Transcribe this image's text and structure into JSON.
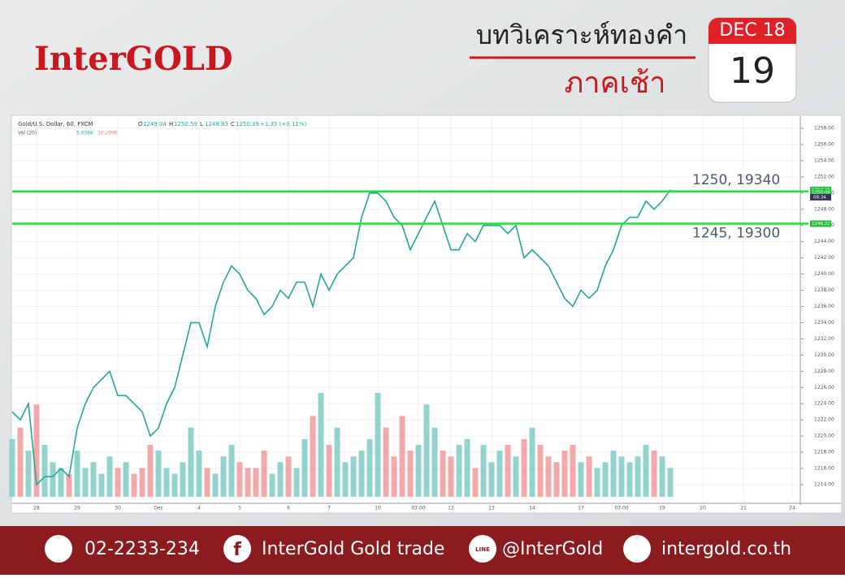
{
  "header": {
    "logo": "InterGOLD",
    "title": "บทวิเคราะห์ทองคำ",
    "subtitle": "ภาคเช้า",
    "calendar_month": "DEC 18",
    "calendar_day": "19"
  },
  "chart_data": {
    "type": "line",
    "legend_title": "Gold/U.S. Dollar, 60, FXCM",
    "ohlc_labels": [
      "O",
      "H",
      "L",
      "C"
    ],
    "ohlc": [
      1249.04,
      1250.59,
      1248.93,
      1250.39
    ],
    "change": "+1.35 (+0.11%)",
    "volume_readouts": [
      "5.036K",
      "10.209K"
    ],
    "categories": [
      null,
      null,
      null,
      "28",
      null,
      null,
      null,
      null,
      "29",
      null,
      null,
      null,
      null,
      "30",
      null,
      null,
      null,
      null,
      "Dec",
      null,
      null,
      null,
      null,
      "4",
      null,
      null,
      null,
      null,
      "5",
      null,
      null,
      null,
      null,
      null,
      "6",
      null,
      null,
      null,
      null,
      "7",
      null,
      null,
      null,
      null,
      null,
      "10",
      null,
      null,
      null,
      null,
      "03:00",
      null,
      null,
      null,
      "12",
      null,
      null,
      null,
      null,
      "13",
      null,
      null,
      null,
      null,
      "14",
      null,
      null,
      null,
      null,
      null,
      "17",
      null,
      null,
      null,
      null,
      "03:00",
      null,
      null,
      null,
      null,
      "19",
      null,
      null,
      null,
      null,
      "20",
      null,
      null,
      null,
      null,
      "21",
      null,
      null,
      null,
      null,
      null,
      "24",
      null
    ],
    "series": [
      {
        "name": "Gold/U.S. Dollar",
        "color": "#26a69a",
        "values": [
          1223,
          1222,
          1224,
          1214,
          1215,
          1215,
          1216,
          1215,
          1221,
          1224,
          1226,
          1227,
          1228,
          1225,
          1225,
          1224,
          1223,
          1220,
          1221,
          1224,
          1226,
          1230,
          1234,
          1234,
          1231,
          1236,
          1239,
          1241,
          1240,
          1238,
          1237,
          1235,
          1236,
          1238,
          1237,
          1239,
          1239,
          1236,
          1240,
          1238,
          1240,
          1241,
          1242,
          1247,
          1250,
          1250,
          1249,
          1247,
          1246,
          1243,
          1245,
          1247,
          1249,
          1246,
          1243,
          1243,
          1245,
          1244,
          1246,
          1246,
          1246,
          1245,
          1246,
          1242,
          1243,
          1242,
          1241,
          1239,
          1237,
          1236,
          1238,
          1237,
          1238,
          1241,
          1243,
          1246,
          1247,
          1247,
          1249,
          1248,
          1249,
          1250.39,
          null,
          null,
          null,
          null,
          null,
          null,
          null,
          null,
          null,
          null,
          null,
          null,
          null,
          null,
          null,
          null
        ]
      },
      {
        "name": "Vol (20)",
        "color": "#80cbc4",
        "down_color": "#ef9a9a",
        "axis": "y2",
        "values": [
          10,
          12,
          8,
          16,
          9,
          6,
          5,
          4,
          8,
          5,
          6,
          4,
          7,
          5,
          6,
          4,
          5,
          9,
          8,
          5,
          4,
          6,
          12,
          8,
          5,
          4,
          7,
          9,
          6,
          5,
          5,
          8,
          4,
          6,
          7,
          5,
          10,
          14,
          18,
          9,
          12,
          6,
          7,
          8,
          10,
          18,
          12,
          7,
          14,
          8,
          9,
          16,
          12,
          8,
          7,
          9,
          10,
          5,
          9,
          6,
          8,
          9,
          7,
          10,
          12,
          9,
          7,
          6,
          8,
          9,
          6,
          7,
          5,
          6,
          8,
          7,
          6,
          7,
          9,
          8,
          7,
          5,
          null,
          null,
          null,
          null,
          null,
          null,
          null,
          null,
          null,
          null,
          null,
          null,
          null,
          null,
          null,
          null
        ]
      }
    ],
    "ylim": [
      1212.5,
      1259.5
    ],
    "yticks": [
      {
        "value": 1214,
        "label": "1214.00"
      },
      {
        "value": 1216,
        "label": "1216.00"
      },
      {
        "value": 1218,
        "label": "1218.00"
      },
      {
        "value": 1220,
        "label": "1220.00"
      },
      {
        "value": 1222,
        "label": "1222.00"
      },
      {
        "value": 1224,
        "label": "1224.00"
      },
      {
        "value": 1226,
        "label": "1226.00"
      },
      {
        "value": 1228,
        "label": "1228.00"
      },
      {
        "value": 1230,
        "label": "1230.00"
      },
      {
        "value": 1232,
        "label": "1232.00"
      },
      {
        "value": 1234,
        "label": "1234.00"
      },
      {
        "value": 1236,
        "label": "1236.00"
      },
      {
        "value": 1238,
        "label": "1238.00"
      },
      {
        "value": 1240,
        "label": "1240.00"
      },
      {
        "value": 1242,
        "label": "1242.00"
      },
      {
        "value": 1244,
        "label": "1244.00"
      },
      {
        "value": 1246,
        "label": "1246.00"
      },
      {
        "value": 1248,
        "label": "1248.00"
      },
      {
        "value": 1250,
        "label": "1250.00"
      },
      {
        "value": 1252,
        "label": "1252.00"
      },
      {
        "value": 1254,
        "label": "1254.00"
      },
      {
        "value": 1256,
        "label": "1256.00"
      },
      {
        "value": 1258,
        "label": "1258.00"
      }
    ],
    "y2lim": [
      0,
      66
    ],
    "grid": true,
    "levels": [
      {
        "value": 1250.2,
        "label": "1250, 19340",
        "color": "#22e03a"
      },
      {
        "value": 1246.22,
        "label": "1245, 19300",
        "color": "#22e03a"
      }
    ],
    "price_tags": [
      1250.39,
      1250.06,
      1246.22
    ],
    "countdown": "08:34"
  },
  "footer": {
    "phone": "02-2233-234",
    "facebook": "InterGold Gold trade",
    "line": "@InterGold",
    "website": "intergold.co.th"
  }
}
